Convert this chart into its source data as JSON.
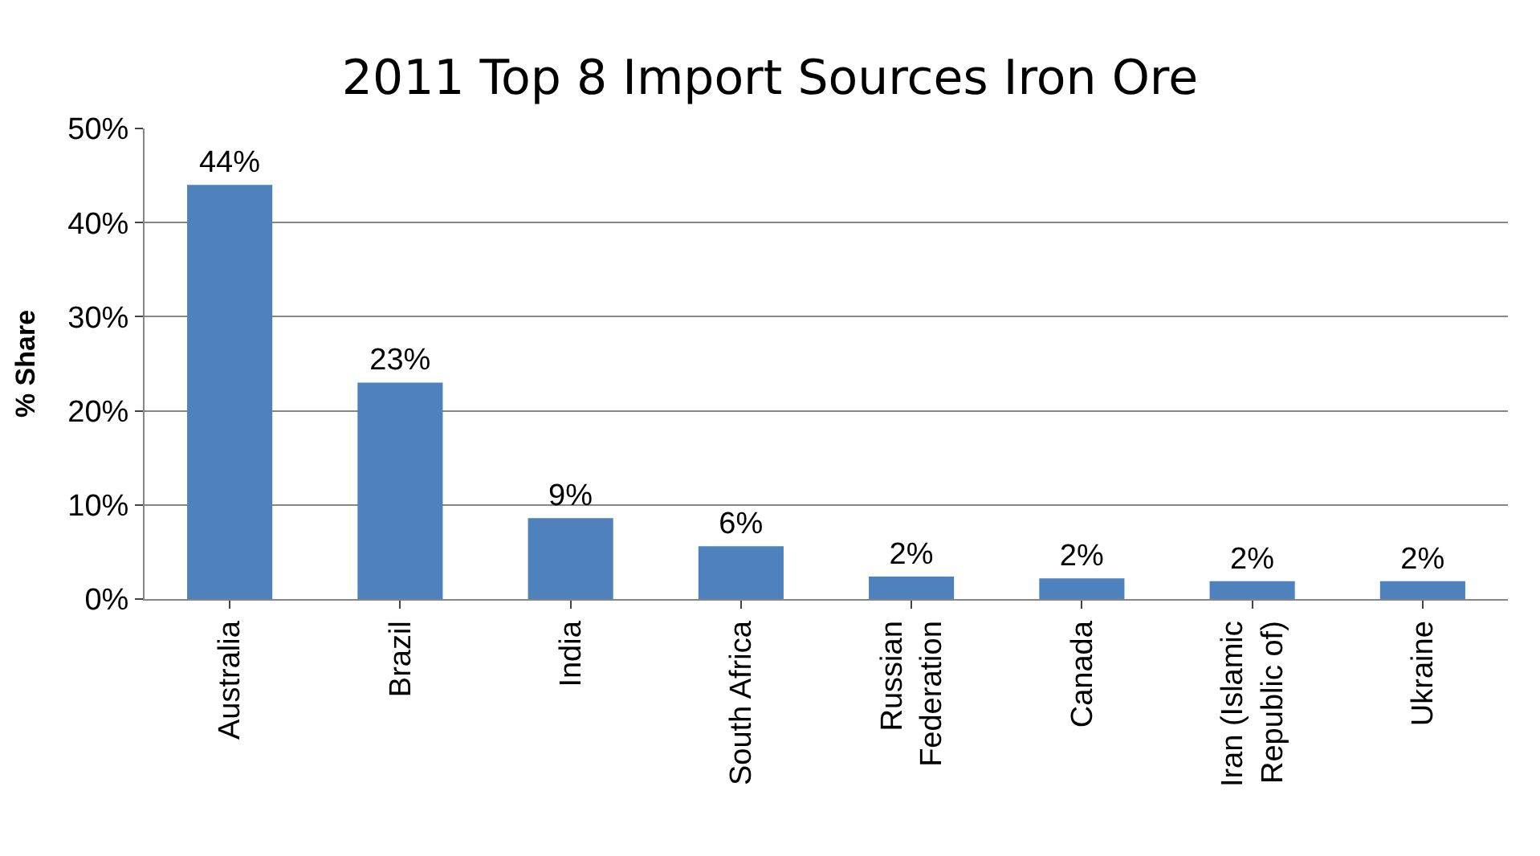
{
  "chart_data": {
    "type": "bar",
    "title": "2011 Top 8 Import Sources Iron Ore",
    "ylabel": "% Share",
    "categories": [
      "Australia",
      "Brazil",
      "India",
      "South Africa",
      "Russian\nFederation",
      "Canada",
      "Iran (Islamic\nRepublic of)",
      "Ukraine"
    ],
    "values": [
      44,
      23,
      8.6,
      5.6,
      2.4,
      2.2,
      1.9,
      1.9
    ],
    "value_labels": [
      "44%",
      "23%",
      "9%",
      "6%",
      "2%",
      "2%",
      "2%",
      "2%"
    ],
    "color": "#4f81bd",
    "ylim": [
      0,
      50
    ],
    "yticks": [
      {
        "value": 0,
        "label": "0%"
      },
      {
        "value": 10,
        "label": "10%"
      },
      {
        "value": 20,
        "label": "20%"
      },
      {
        "value": 30,
        "label": "30%"
      },
      {
        "value": 40,
        "label": "40%"
      },
      {
        "value": 50,
        "label": "50%"
      }
    ],
    "grid": "y",
    "legend": false
  }
}
